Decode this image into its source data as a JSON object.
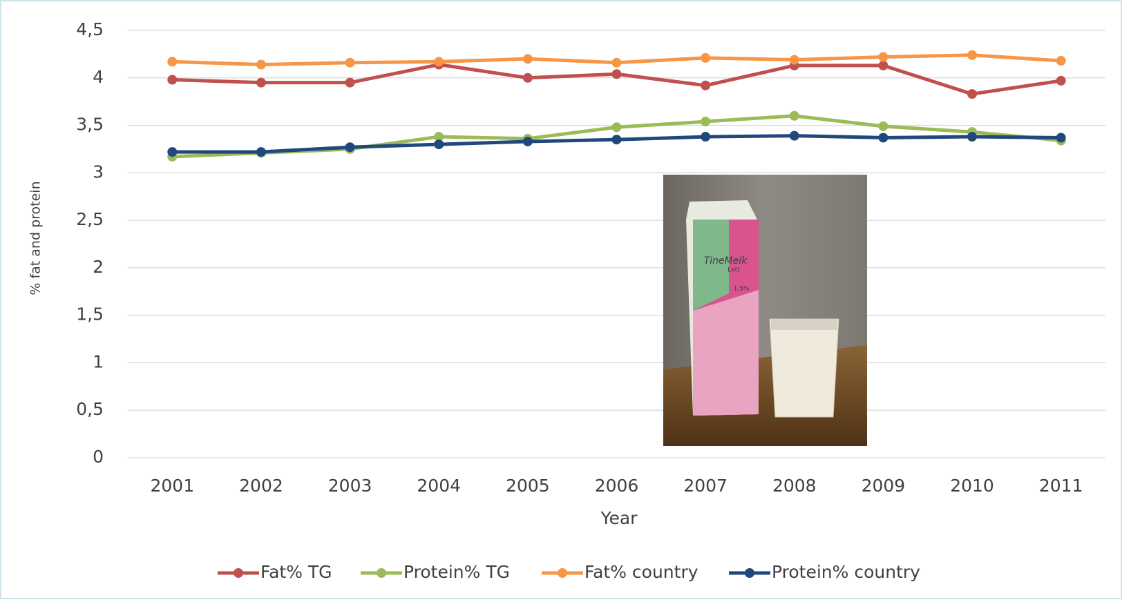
{
  "chart_data": {
    "type": "line",
    "x_label": "Year",
    "y_label": "% fat and protein",
    "categories": [
      "2001",
      "2002",
      "2003",
      "2004",
      "2005",
      "2006",
      "2007",
      "2008",
      "2009",
      "2010",
      "2011"
    ],
    "series": [
      {
        "name": "Fat% TG",
        "color": "#c0504d",
        "values": [
          3.98,
          3.95,
          3.95,
          4.14,
          4.0,
          4.04,
          3.92,
          4.13,
          4.13,
          3.83,
          3.97
        ]
      },
      {
        "name": "Protein% TG",
        "color": "#9bbb59",
        "values": [
          3.17,
          3.21,
          3.25,
          3.38,
          3.36,
          3.48,
          3.54,
          3.6,
          3.49,
          3.43,
          3.34
        ]
      },
      {
        "name": "Fat% country",
        "color": "#f79646",
        "values": [
          4.17,
          4.14,
          4.16,
          4.17,
          4.2,
          4.16,
          4.21,
          4.19,
          4.22,
          4.24,
          4.18
        ]
      },
      {
        "name": "Protein% country",
        "color": "#1f497d",
        "values": [
          3.22,
          3.22,
          3.27,
          3.3,
          3.33,
          3.35,
          3.38,
          3.39,
          3.37,
          3.38,
          3.37
        ]
      }
    ],
    "ylim": [
      0,
      4.5
    ],
    "yticks": [
      0,
      {
        "value": 0.5,
        "label": "0,5"
      },
      1,
      {
        "value": 1.5,
        "label": "1,5"
      },
      2,
      {
        "value": 2.5,
        "label": "2,5"
      },
      3,
      {
        "value": 3.5,
        "label": "3,5"
      },
      4,
      {
        "value": 4.5,
        "label": "4,5"
      }
    ],
    "grid": true,
    "legend": "bottom",
    "annotations": [
      "TineMelk",
      "Lett",
      "1,5%"
    ]
  }
}
